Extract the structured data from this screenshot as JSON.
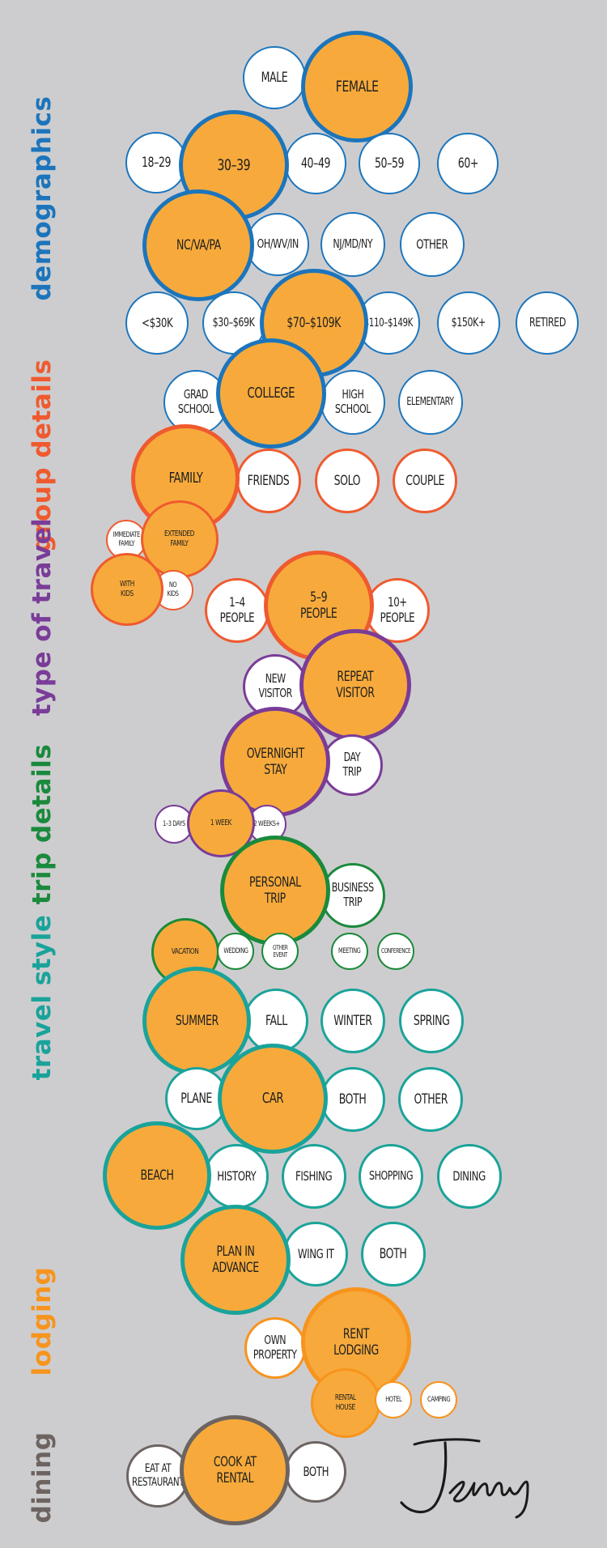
{
  "colors": {
    "background": "#cdcdcf",
    "selected_fill": "#f7aa3b",
    "demographics": "#1c75bc",
    "group_details": "#ef5a2f",
    "type_of_travel": "#7a3c98",
    "trip_details": "#1a8a3c",
    "travel_style": "#1aa39a",
    "lodging": "#f7941d",
    "dining": "#6d6461"
  },
  "section_labels": {
    "demographics": "demographics",
    "group_details": "group details",
    "type_of_travel": "type of travel",
    "trip_details": "trip details",
    "travel_style": "travel style",
    "lodging": "lodging",
    "dining": "dining"
  },
  "signature": "Jenny",
  "bubbles": {
    "male": "MALE",
    "female": "FEMALE",
    "age_18_29": "18–29",
    "age_30_39": "30–39",
    "age_40_49": "40–49",
    "age_50_59": "50–59",
    "age_60_plus": "60+",
    "region_nc_va_pa": "NC/VA/PA",
    "region_oh_wv_in": "OH/WV/IN",
    "region_nj_md_ny": "NJ/MD/NY",
    "region_other": "OTHER",
    "income_lt_30k": "<$30K",
    "income_30_69k": "$30–$69K",
    "income_70_109k": "$70–$109K",
    "income_110_149k": "$110–$149K",
    "income_150k_plus": "$150K+",
    "income_retired": "RETIRED",
    "edu_grad_school": "GRAD\nSCHOOL",
    "edu_college": "COLLEGE",
    "edu_high_school": "HIGH\nSCHOOL",
    "edu_elementary": "ELEMENTARY",
    "group_family": "FAMILY",
    "group_friends": "FRIENDS",
    "group_solo": "SOLO",
    "group_couple": "COUPLE",
    "family_immediate": "IMMEDIATE\nFAMILY",
    "family_extended": "EXTENDED\nFAMILY",
    "kids_with": "WITH\nKIDS",
    "kids_no": "NO\nKIDS",
    "size_1_4": "1–4\nPEOPLE",
    "size_5_9": "5–9\nPEOPLE",
    "size_10_plus": "10+\nPEOPLE",
    "visitor_new": "NEW\nVISITOR",
    "visitor_repeat": "REPEAT\nVISITOR",
    "stay_overnight": "OVERNIGHT\nSTAY",
    "stay_day_trip": "DAY\nTRIP",
    "length_1_3_days": "1–3 DAYS",
    "length_1_week": "1 WEEK",
    "length_2_weeks": "2 WEEKS+",
    "trip_personal": "PERSONAL\nTRIP",
    "trip_business": "BUSINESS\nTRIP",
    "purpose_vacation": "VACATION",
    "purpose_wedding": "WEDDING",
    "purpose_other_event": "OTHER\nEVENT",
    "purpose_meeting": "MEETING",
    "purpose_conference": "CONFERENCE",
    "season_summer": "SUMMER",
    "season_fall": "FALL",
    "season_winter": "WINTER",
    "season_spring": "SPRING",
    "transport_plane": "PLANE",
    "transport_car": "CAR",
    "transport_both": "BOTH",
    "transport_other": "OTHER",
    "activity_beach": "BEACH",
    "activity_history": "HISTORY",
    "activity_fishing": "FISHING",
    "activity_shopping": "SHOPPING",
    "activity_dining": "DINING",
    "planning_advance": "PLAN IN\nADVANCE",
    "planning_wing_it": "WING IT",
    "planning_both": "BOTH",
    "lodging_own_property": "OWN\nPROPERTY",
    "lodging_rent": "RENT\nLODGING",
    "lodging_rental_house": "RENTAL\nHOUSE",
    "lodging_hotel": "HOTEL",
    "lodging_camping": "CAMPING",
    "dining_restaurant": "EAT AT\nRESTAURANT",
    "dining_cook": "COOK AT\nRENTAL",
    "dining_both": "BOTH"
  }
}
